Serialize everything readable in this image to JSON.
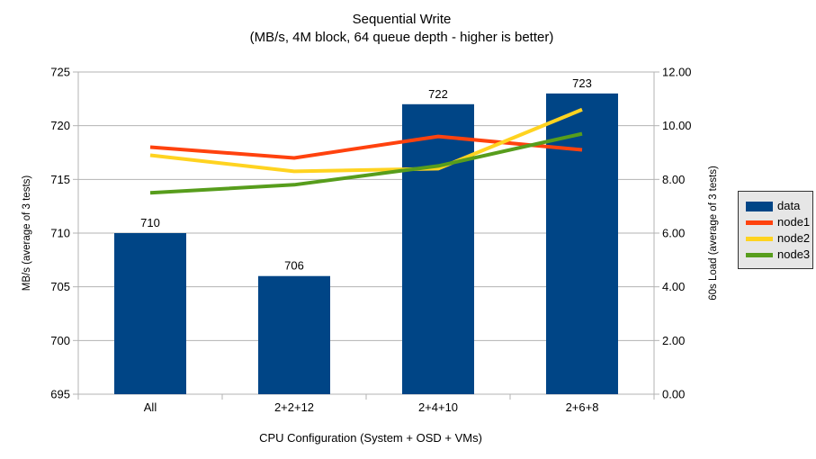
{
  "chart_data": {
    "type": "combo-bar-line",
    "title": "Sequential Write",
    "subtitle": "(MB/s, 4M block, 64 queue depth - higher is better)",
    "xlabel": "CPU Configuration (System + OSD + VMs)",
    "categories": [
      "All",
      "2+2+12",
      "2+4+10",
      "2+6+8"
    ],
    "left_axis": {
      "label": "MB/s (average of 3 tests)",
      "min": 695,
      "max": 725,
      "tick_values": [
        695,
        700,
        705,
        710,
        715,
        720,
        725
      ],
      "tick_labels": [
        "695",
        "700",
        "705",
        "710",
        "715",
        "720",
        "725"
      ]
    },
    "right_axis": {
      "label": "60s Load (average of 3 tests)",
      "min": 0,
      "max": 12,
      "tick_values": [
        0,
        2,
        4,
        6,
        8,
        10,
        12
      ],
      "tick_labels": [
        "0.00",
        "2.00",
        "4.00",
        "6.00",
        "8.00",
        "10.00",
        "12.00"
      ]
    },
    "series": [
      {
        "name": "data",
        "type": "bar",
        "axis": "left",
        "color": "#004586",
        "values": [
          710,
          706,
          722,
          723
        ],
        "labels": [
          "710",
          "706",
          "722",
          "723"
        ]
      },
      {
        "name": "node1",
        "type": "line",
        "axis": "right",
        "color": "#FF420E",
        "values": [
          9.2,
          8.8,
          9.6,
          9.1
        ]
      },
      {
        "name": "node2",
        "type": "line",
        "axis": "right",
        "color": "#FFD320",
        "values": [
          8.9,
          8.3,
          8.4,
          10.6
        ]
      },
      {
        "name": "node3",
        "type": "line",
        "axis": "right",
        "color": "#579D1C",
        "values": [
          7.5,
          7.8,
          8.5,
          9.7
        ]
      }
    ],
    "legend": {
      "position": "right",
      "items": [
        "data",
        "node1",
        "node2",
        "node3"
      ]
    },
    "grid": true,
    "colors": {
      "background": "#FFFFFF",
      "axis": "#B3B3B3",
      "grid": "#B3B3B3",
      "text": "#000000",
      "legend_bg": "#E6E6E6",
      "legend_border": "#333333"
    }
  }
}
